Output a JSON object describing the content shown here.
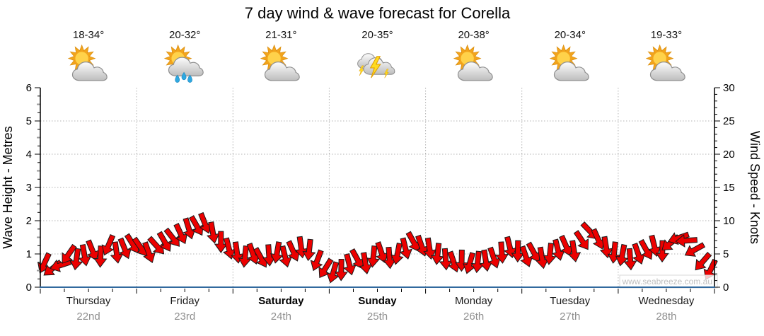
{
  "title": "7 day wind & wave forecast for Corella",
  "watermark": "www.seabreeze.com.au",
  "days": [
    {
      "name": "Thursday",
      "date": "22nd",
      "temp": "18-34°",
      "icon": "partly-cloudy",
      "bold": false
    },
    {
      "name": "Friday",
      "date": "23rd",
      "temp": "20-32°",
      "icon": "rain-showers",
      "bold": false
    },
    {
      "name": "Saturday",
      "date": "24th",
      "temp": "21-31°",
      "icon": "partly-cloudy",
      "bold": true
    },
    {
      "name": "Sunday",
      "date": "25th",
      "temp": "20-35°",
      "icon": "thunderstorm",
      "bold": true
    },
    {
      "name": "Monday",
      "date": "26th",
      "temp": "20-38°",
      "icon": "partly-cloudy",
      "bold": false
    },
    {
      "name": "Tuesday",
      "date": "27th",
      "temp": "20-34°",
      "icon": "partly-cloudy",
      "bold": false
    },
    {
      "name": "Wednesday",
      "date": "28th",
      "temp": "19-33°",
      "icon": "partly-cloudy",
      "bold": false
    }
  ],
  "chart_data": {
    "type": "wind-arrow-timeseries",
    "title": "7 day wind & wave forecast for Corella",
    "x_categories": [
      "Thursday 22nd",
      "Friday 23rd",
      "Saturday 24th",
      "Sunday 25th",
      "Monday 26th",
      "Tuesday 27th",
      "Wednesday 28th"
    ],
    "left_axis": {
      "label": "Wave Height - Metres",
      "min": 0,
      "max": 6,
      "major_step": 1,
      "medium_step": 0.5,
      "minor_step": 0.25
    },
    "right_axis": {
      "label": "Wind Speed - Knots",
      "min": 0,
      "max": 30,
      "major_step": 5,
      "medium_step": 2.5,
      "minor_step": 1
    },
    "grid": {
      "horizontal": "dotted at each metre",
      "vertical": "dotted at day boundaries",
      "x_minor_tick_hours": 6
    },
    "wind": {
      "units": "knots",
      "sample_interval_hours": 2,
      "note": "points are [speed_knots, direction_deg_arrow_points_toward, 0=up]",
      "points": [
        [
          3.6,
          205
        ],
        [
          2.8,
          232
        ],
        [
          3.3,
          252
        ],
        [
          4.9,
          215
        ],
        [
          4.2,
          188
        ],
        [
          4.8,
          170
        ],
        [
          5.5,
          158
        ],
        [
          4.6,
          182
        ],
        [
          6.3,
          203
        ],
        [
          5.2,
          172
        ],
        [
          5.8,
          158
        ],
        [
          6.5,
          148
        ],
        [
          6.0,
          145
        ],
        [
          5.2,
          160
        ],
        [
          6.2,
          138
        ],
        [
          6.8,
          150
        ],
        [
          7.4,
          142
        ],
        [
          8.0,
          155
        ],
        [
          8.8,
          163
        ],
        [
          9.2,
          150
        ],
        [
          9.6,
          158
        ],
        [
          8.2,
          170
        ],
        [
          6.8,
          180
        ],
        [
          5.8,
          166
        ],
        [
          5.2,
          172
        ],
        [
          4.6,
          186
        ],
        [
          5.0,
          161
        ],
        [
          4.4,
          151
        ],
        [
          4.8,
          176
        ],
        [
          5.2,
          190
        ],
        [
          4.6,
          166
        ],
        [
          5.4,
          156
        ],
        [
          6.0,
          172
        ],
        [
          5.6,
          186
        ],
        [
          4.0,
          201
        ],
        [
          2.8,
          212
        ],
        [
          2.2,
          196
        ],
        [
          2.6,
          181
        ],
        [
          3.4,
          166
        ],
        [
          4.2,
          151
        ],
        [
          3.6,
          171
        ],
        [
          4.6,
          186
        ],
        [
          5.2,
          161
        ],
        [
          4.4,
          176
        ],
        [
          5.0,
          191
        ],
        [
          5.8,
          166
        ],
        [
          6.8,
          151
        ],
        [
          6.2,
          161
        ],
        [
          5.8,
          171
        ],
        [
          5.0,
          186
        ],
        [
          4.2,
          176
        ],
        [
          3.8,
          161
        ],
        [
          4.0,
          181
        ],
        [
          3.6,
          196
        ],
        [
          3.8,
          186
        ],
        [
          4.0,
          171
        ],
        [
          4.4,
          161
        ],
        [
          5.2,
          176
        ],
        [
          6.0,
          166
        ],
        [
          5.4,
          181
        ],
        [
          4.6,
          161
        ],
        [
          5.2,
          151
        ],
        [
          4.4,
          171
        ],
        [
          5.0,
          186
        ],
        [
          5.6,
          166
        ],
        [
          6.2,
          156
        ],
        [
          5.4,
          171
        ],
        [
          7.0,
          146
        ],
        [
          8.4,
          136
        ],
        [
          7.2,
          156
        ],
        [
          6.0,
          171
        ],
        [
          5.2,
          186
        ],
        [
          4.8,
          191
        ],
        [
          4.2,
          176
        ],
        [
          5.0,
          161
        ],
        [
          5.6,
          151
        ],
        [
          6.2,
          166
        ],
        [
          5.4,
          181
        ],
        [
          6.6,
          231
        ],
        [
          7.4,
          251
        ],
        [
          7.0,
          266
        ],
        [
          5.6,
          241
        ],
        [
          3.8,
          221
        ],
        [
          2.6,
          206
        ]
      ]
    }
  },
  "colors": {
    "arrow_fill": "#EC0000",
    "arrow_outline": "#1A1A1A",
    "x_axis_line": "#31699E",
    "grid_line": "#B3B3B3",
    "tick": "#000000",
    "date_label": "#8F8F8F",
    "watermark": "#BFBFBF",
    "title": "#000000"
  }
}
